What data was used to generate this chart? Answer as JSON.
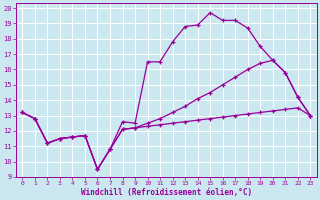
{
  "xlabel": "Windchill (Refroidissement éolien,°C)",
  "bg_color": "#cbe8f0",
  "grid_color": "#ffffff",
  "line_color": "#990099",
  "xlim": [
    -0.5,
    23.5
  ],
  "ylim": [
    9,
    20.3
  ],
  "xticks": [
    0,
    1,
    2,
    3,
    4,
    5,
    6,
    7,
    8,
    9,
    10,
    11,
    12,
    13,
    14,
    15,
    16,
    17,
    18,
    19,
    20,
    21,
    22,
    23
  ],
  "yticks": [
    9,
    10,
    11,
    12,
    13,
    14,
    15,
    16,
    17,
    18,
    19,
    20
  ],
  "line1_x": [
    0,
    1,
    2,
    3,
    4,
    5,
    6,
    7,
    8,
    9,
    10,
    11,
    12,
    13,
    14,
    15,
    16,
    17,
    18,
    19,
    20,
    21,
    22,
    23
  ],
  "line1_y": [
    13.2,
    12.8,
    11.2,
    11.5,
    11.6,
    11.7,
    9.5,
    10.8,
    12.6,
    12.5,
    16.5,
    16.5,
    17.8,
    18.8,
    18.9,
    19.7,
    19.2,
    19.2,
    18.7,
    17.5,
    16.6,
    15.8,
    14.2,
    13.0
  ],
  "line2_x": [
    0,
    1,
    2,
    3,
    4,
    5,
    6,
    7,
    8,
    9,
    10,
    11,
    12,
    13,
    14,
    15,
    16,
    17,
    18,
    19,
    20,
    21,
    22,
    23
  ],
  "line2_y": [
    13.2,
    12.8,
    11.2,
    11.5,
    11.6,
    11.7,
    9.5,
    10.8,
    12.1,
    12.2,
    12.5,
    12.8,
    13.2,
    13.6,
    14.1,
    14.5,
    15.0,
    15.5,
    16.0,
    16.4,
    16.6,
    15.8,
    14.2,
    13.0
  ],
  "line3_x": [
    0,
    1,
    2,
    3,
    4,
    5,
    6,
    7,
    8,
    9,
    10,
    11,
    12,
    13,
    14,
    15,
    16,
    17,
    18,
    19,
    20,
    21,
    22,
    23
  ],
  "line3_y": [
    13.2,
    12.8,
    11.2,
    11.5,
    11.6,
    11.7,
    9.5,
    10.8,
    12.1,
    12.2,
    12.3,
    12.4,
    12.5,
    12.6,
    12.7,
    12.8,
    12.9,
    13.0,
    13.1,
    13.2,
    13.3,
    13.4,
    13.5,
    13.0
  ]
}
